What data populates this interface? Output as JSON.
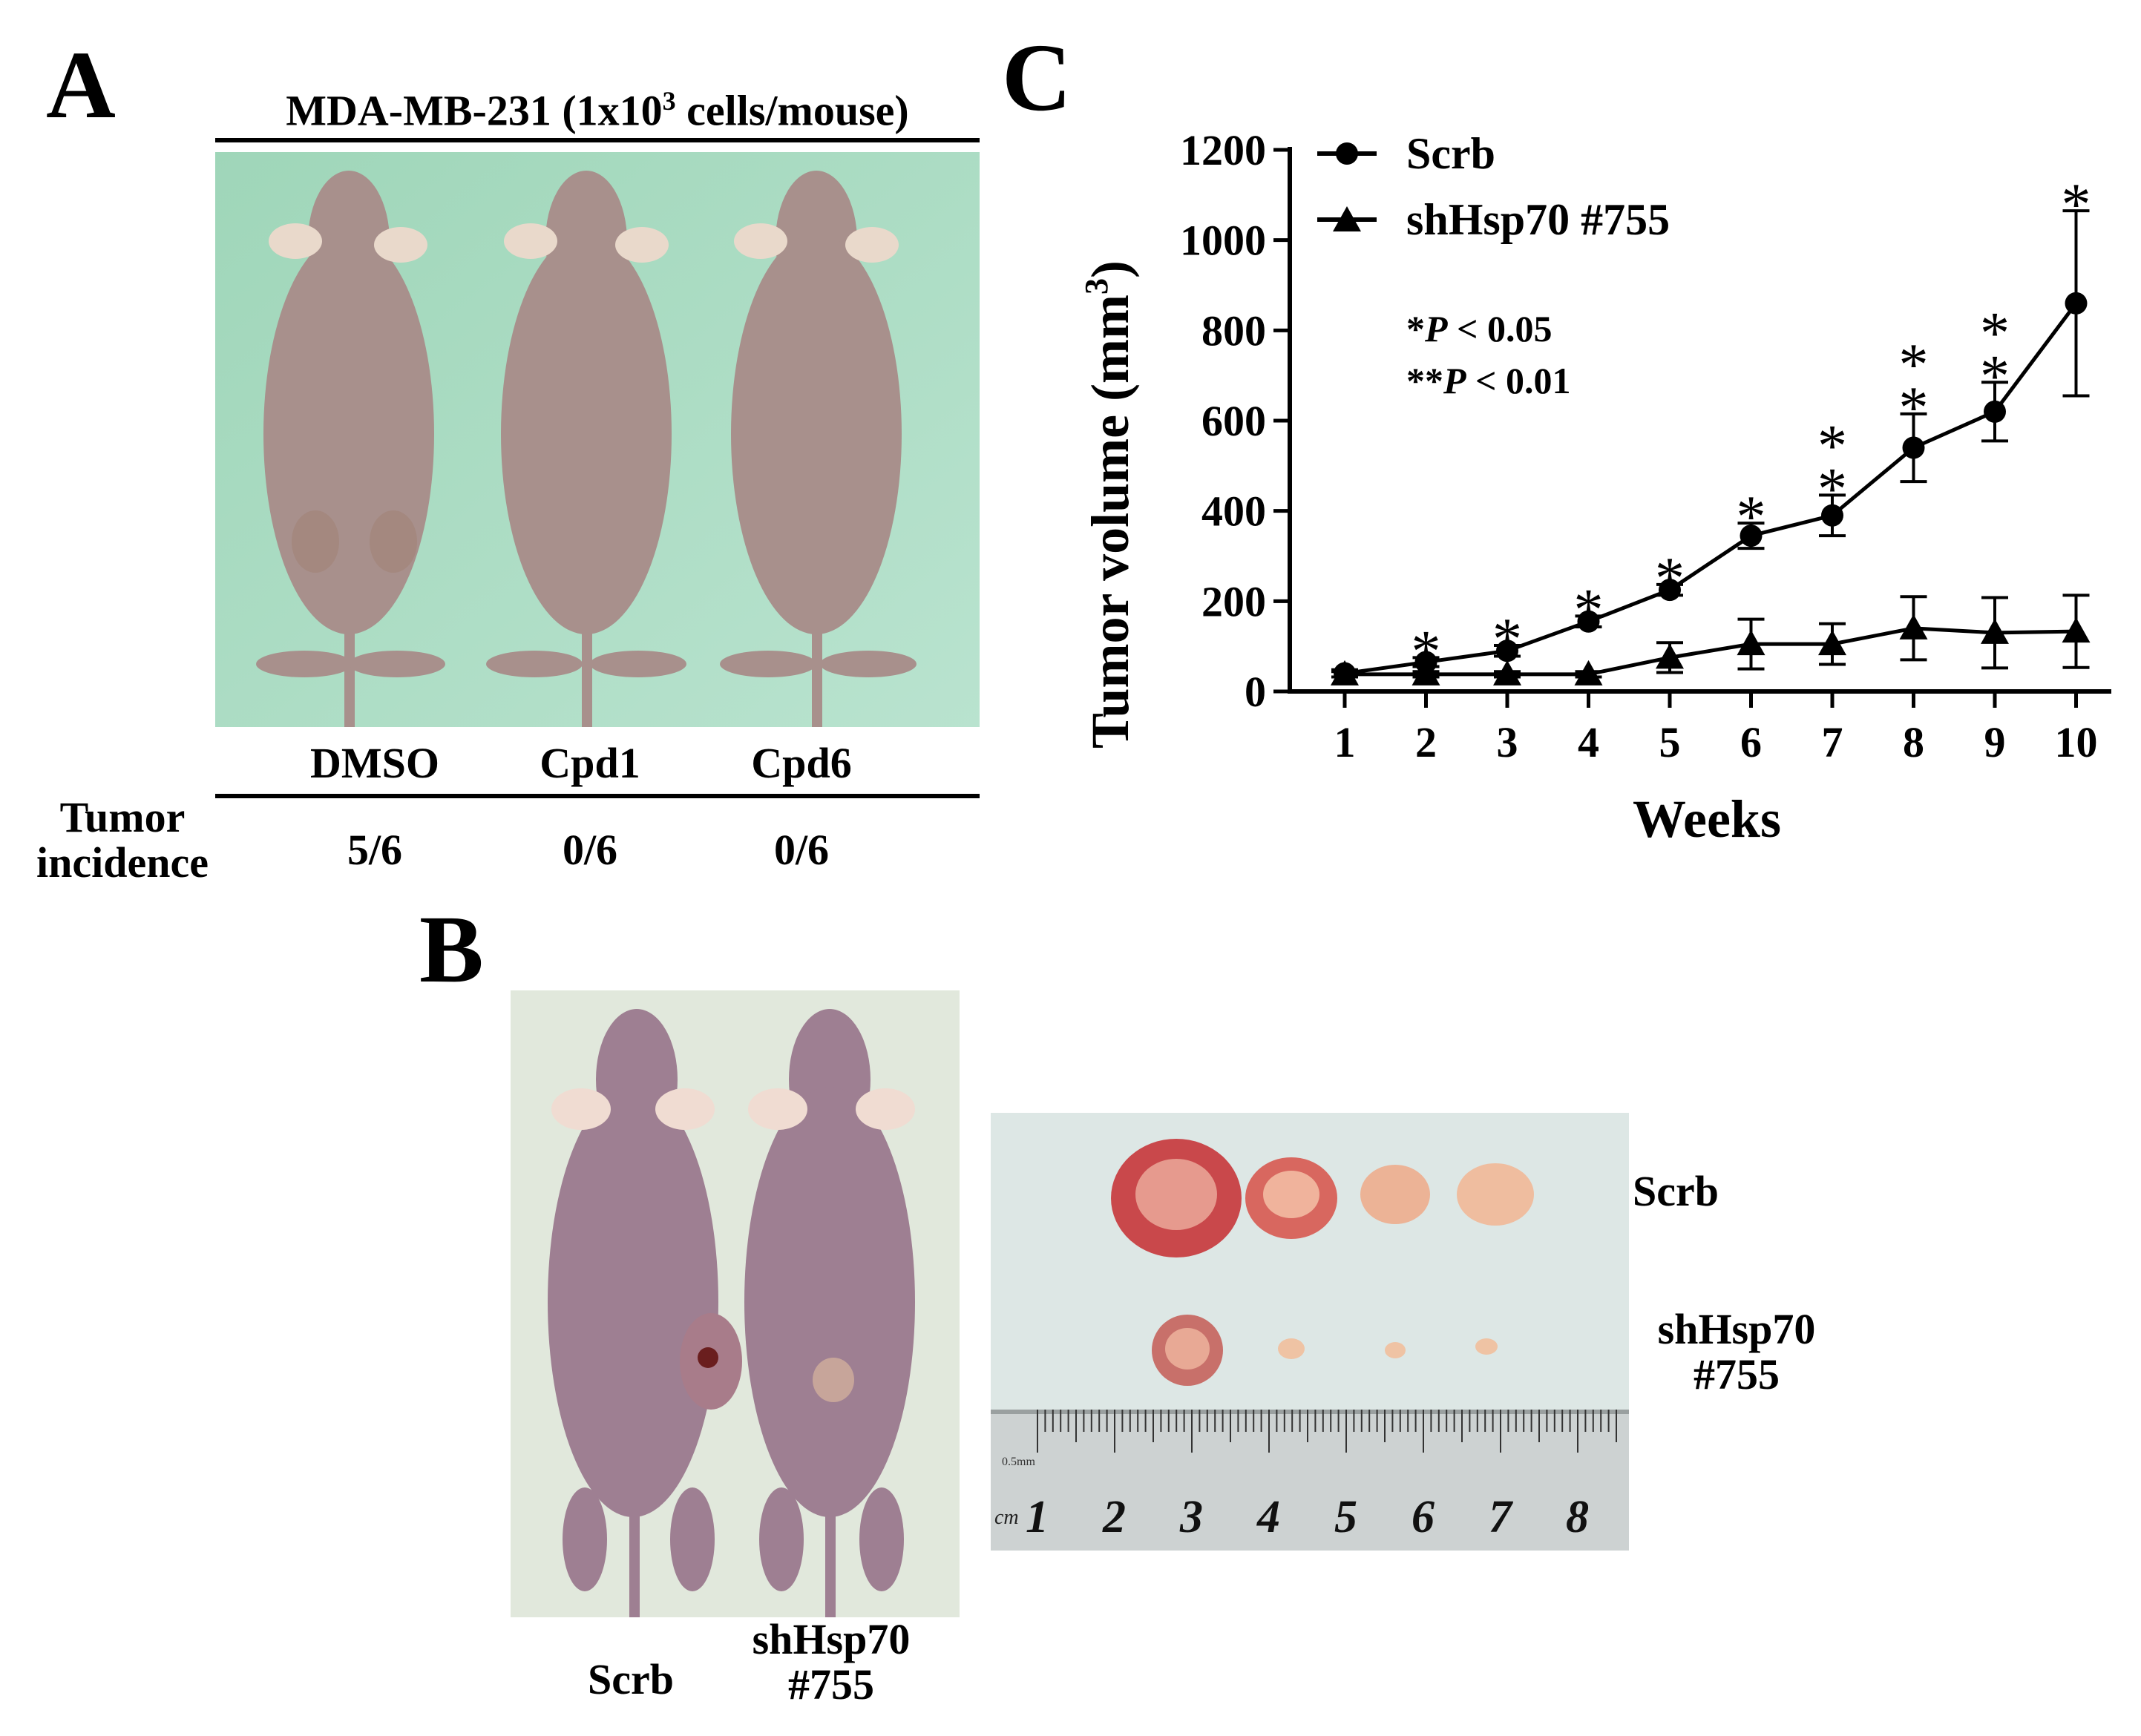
{
  "panel_a": {
    "label": "A",
    "header_prefix": "MDA-MB-231 (1x10",
    "header_sup": "3",
    "header_suffix": " cells/mouse)",
    "groups": [
      "DMSO",
      "Cpd1",
      "Cpd6"
    ],
    "row_label_line1": "Tumor",
    "row_label_line2": "incidence",
    "incidence": [
      "5/6",
      "0/6",
      "0/6"
    ],
    "photo_bg": "#a9dcc2"
  },
  "panel_b": {
    "label": "B",
    "mouse_labels": [
      {
        "line1": "Scrb",
        "line2": ""
      },
      {
        "line1": "shHsp70",
        "line2": "#755"
      }
    ],
    "tumor_row_labels": [
      {
        "line1": "Scrb",
        "line2": ""
      },
      {
        "line1": "shHsp70",
        "line2": "#755"
      }
    ],
    "ruler_numbers": [
      "1",
      "2",
      "3",
      "4",
      "5",
      "6",
      "7",
      "8"
    ],
    "ruler_unit": "cm",
    "ruler_small_text": "0.5mm"
  },
  "panel_c": {
    "label": "C",
    "legend": [
      "Scrb",
      "shHsp70 #755"
    ],
    "sig_line1_prefix": "*",
    "sig_line1_italic": "P",
    "sig_line1_suffix": " < 0.05",
    "sig_line2_prefix": "**",
    "sig_line2_italic": "P",
    "sig_line2_suffix": " < 0.01"
  },
  "chart_data": {
    "type": "line",
    "title": "",
    "xlabel": "Weeks",
    "ylabel": "Tumor volume (mm³)",
    "ylabel_main": "Tumor volume (mm",
    "ylabel_sup": "3",
    "ylabel_close": ")",
    "x": [
      1,
      2,
      3,
      4,
      5,
      6,
      7,
      8,
      9,
      10
    ],
    "xticks": [
      "1",
      "2",
      "3",
      "4",
      "5",
      "6",
      "7",
      "8",
      "9",
      "10"
    ],
    "ylim": [
      0,
      1200
    ],
    "yticks": [
      "0",
      "200",
      "400",
      "600",
      "800",
      "1000",
      "1200"
    ],
    "yticks_values": [
      0,
      200,
      400,
      600,
      800,
      1000,
      1200
    ],
    "series": [
      {
        "name": "Scrb",
        "marker": "circle",
        "values": [
          40,
          65,
          90,
          155,
          225,
          345,
          390,
          540,
          620,
          860
        ],
        "errors": [
          8,
          10,
          12,
          12,
          12,
          28,
          45,
          75,
          65,
          205
        ]
      },
      {
        "name": "shHsp70 #755",
        "marker": "triangle",
        "values": [
          38,
          38,
          38,
          38,
          75,
          105,
          105,
          140,
          130,
          133
        ],
        "errors": [
          6,
          6,
          6,
          6,
          33,
          55,
          45,
          70,
          78,
          80
        ]
      }
    ],
    "significance": [
      "",
      "*",
      "*",
      "*",
      "*",
      "*",
      "**",
      "**",
      "**",
      "*"
    ]
  }
}
